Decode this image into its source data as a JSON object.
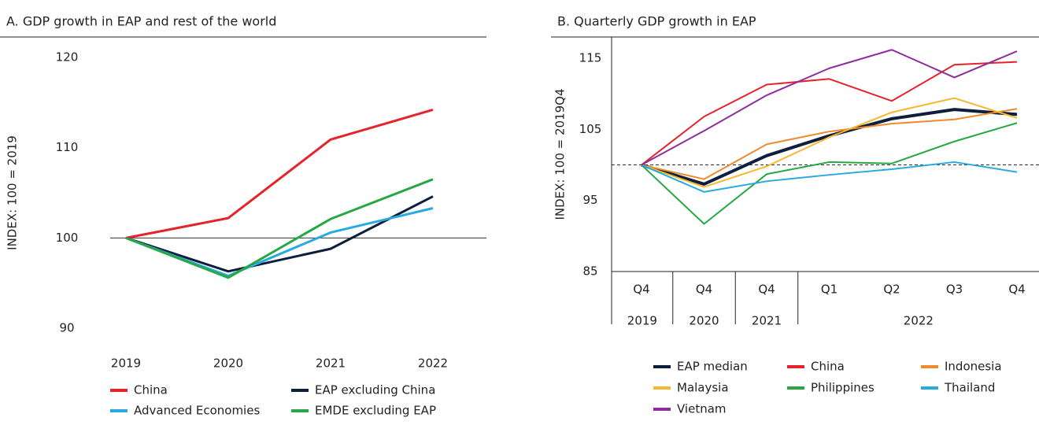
{
  "chart_data": [
    {
      "type": "line",
      "title": "A. GDP growth in EAP and rest of the world",
      "y_label": "INDEX: 100 = 2019",
      "categories": [
        "2019",
        "2020",
        "2021",
        "2022"
      ],
      "ylim": [
        88,
        122
      ],
      "yticks": [
        90,
        100,
        110,
        120
      ],
      "reference_line": 100,
      "reference_style": "solid",
      "series": [
        {
          "name": "China",
          "color": "#e3242b",
          "values": [
            100,
            102.2,
            110.9,
            114.2
          ]
        },
        {
          "name": "EAP excluding China",
          "color": "#0d1f3c",
          "values": [
            100,
            96.3,
            98.8,
            104.6
          ]
        },
        {
          "name": "Advanced Economies",
          "color": "#2aa9e0",
          "values": [
            100,
            95.8,
            100.6,
            103.3
          ]
        },
        {
          "name": "EMDE excluding EAP",
          "color": "#27a844",
          "values": [
            100,
            95.6,
            102.1,
            106.5
          ]
        }
      ]
    },
    {
      "type": "line",
      "title": "B. Quarterly GDP growth in EAP",
      "y_label": "INDEX: 100 = 2019Q4",
      "categories": [
        "Q4",
        "Q4",
        "Q4",
        "Q1",
        "Q2",
        "Q3",
        "Q4"
      ],
      "year_groups": [
        {
          "label": "2019",
          "count": 1
        },
        {
          "label": "2020",
          "count": 1
        },
        {
          "label": "2021",
          "count": 1
        },
        {
          "label": "2022",
          "count": 4
        }
      ],
      "ylim": [
        85,
        118
      ],
      "yticks": [
        85,
        95,
        105,
        115
      ],
      "reference_line": 100,
      "reference_style": "dashed",
      "series": [
        {
          "name": "EAP median",
          "color": "#0d1f3c",
          "values": [
            100,
            97.3,
            101.3,
            104.1,
            106.5,
            107.8,
            107.1
          ]
        },
        {
          "name": "China",
          "color": "#e3242b",
          "values": [
            100,
            106.8,
            111.3,
            112.1,
            109,
            114.1,
            114.5
          ]
        },
        {
          "name": "Indonesia",
          "color": "#f08a2e",
          "values": [
            100,
            98,
            102.9,
            104.7,
            105.8,
            106.4,
            107.9
          ]
        },
        {
          "name": "Malaysia",
          "color": "#f5b82e",
          "values": [
            100,
            96.9,
            99.8,
            103.9,
            107.4,
            109.4,
            106.6
          ]
        },
        {
          "name": "Philippines",
          "color": "#27a844",
          "values": [
            100,
            91.7,
            98.7,
            100.4,
            100.2,
            103.3,
            105.9
          ]
        },
        {
          "name": "Thailand",
          "color": "#2aa9e0",
          "values": [
            100,
            96.2,
            97.7,
            98.6,
            99.4,
            100.4,
            99
          ]
        },
        {
          "name": "Vietnam",
          "color": "#8c2f9a",
          "values": [
            100,
            104.8,
            109.8,
            113.6,
            116.2,
            112.3,
            116
          ]
        }
      ]
    }
  ]
}
